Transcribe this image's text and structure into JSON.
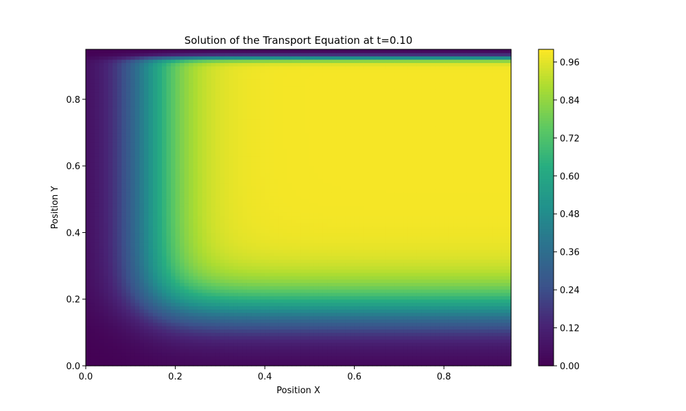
{
  "chart_data": {
    "type": "heatmap",
    "title": "Solution of the Transport Equation at t=0.10",
    "xlabel": "Position X",
    "ylabel": "Position Y",
    "xlim": [
      0,
      0.95
    ],
    "ylim": [
      0,
      0.95
    ],
    "x_ticks": [
      "0.0",
      "0.2",
      "0.4",
      "0.6",
      "0.8"
    ],
    "x_tick_values": [
      0.0,
      0.2,
      0.4,
      0.6,
      0.8
    ],
    "y_ticks": [
      "0.0",
      "0.2",
      "0.4",
      "0.6",
      "0.8"
    ],
    "y_tick_values": [
      0.0,
      0.2,
      0.4,
      0.6,
      0.8
    ],
    "colorbar": {
      "min": 0.0,
      "max": 1.0,
      "ticks": [
        "0.00",
        "0.12",
        "0.24",
        "0.36",
        "0.48",
        "0.60",
        "0.72",
        "0.84",
        "0.96"
      ],
      "tick_values": [
        0.0,
        0.12,
        0.24,
        0.36,
        0.48,
        0.6,
        0.72,
        0.84,
        0.96
      ],
      "colormap": "viridis"
    },
    "field": {
      "description_values": "smooth step: low near x=0 and y=0 edges and at top edge, plateau ~1.0 for x>=0.3 and 0.3<=y<=0.9",
      "x_transition_center": 0.14,
      "x_transition_width": 0.05,
      "y_transition_center": 0.17,
      "y_transition_width": 0.05,
      "top_drop_center": 0.925,
      "top_drop_width": 0.006,
      "plateau_value": 0.99,
      "grid_step": 0.05
    },
    "grid": false
  }
}
